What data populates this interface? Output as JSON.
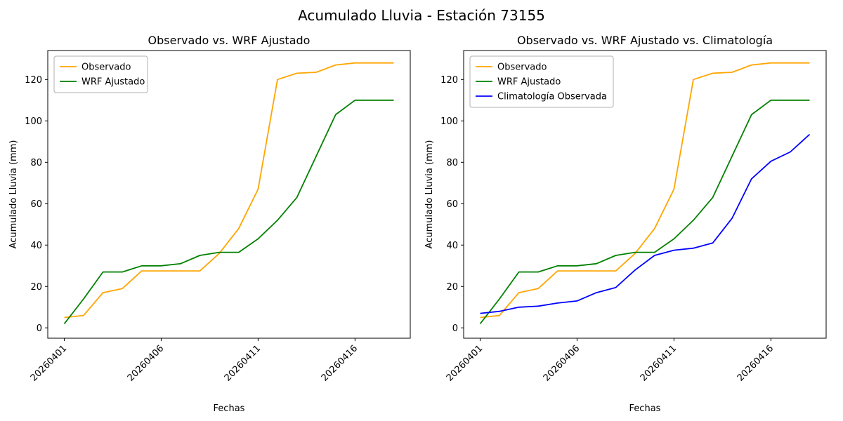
{
  "figure": {
    "title": "Acumulado Lluvia - Estación 73155",
    "background": "#ffffff"
  },
  "chart_data": [
    {
      "type": "line",
      "title": "Observado vs. WRF Ajustado",
      "xlabel": "Fechas",
      "ylabel": "Acumulado Lluvia (mm)",
      "x": [
        "20260401",
        "20260402",
        "20260403",
        "20260404",
        "20260405",
        "20260406",
        "20260407",
        "20260408",
        "20260409",
        "20260410",
        "20260411",
        "20260412",
        "20260413",
        "20260414",
        "20260415",
        "20260416",
        "20260417",
        "20260418"
      ],
      "x_tick_indices": [
        0,
        5,
        10,
        15
      ],
      "x_tick_labels": [
        "20260401",
        "20260406",
        "20260411",
        "20260416"
      ],
      "yticks": [
        0,
        20,
        40,
        60,
        80,
        100,
        120
      ],
      "ylim": [
        -5,
        134
      ],
      "xlim": [
        -0.85,
        17.85
      ],
      "grid": false,
      "legend_position": "upper left",
      "series": [
        {
          "name": "Observado",
          "color": "#ffa500",
          "values": [
            5,
            6,
            17,
            19,
            27.5,
            27.5,
            27.5,
            27.5,
            36,
            48,
            67,
            120,
            123,
            123.5,
            127,
            128,
            128,
            128
          ]
        },
        {
          "name": "WRF Ajustado",
          "color": "#008000",
          "values": [
            2,
            14,
            27,
            27,
            30,
            30,
            31,
            35,
            36.5,
            36.5,
            43,
            52,
            63,
            83,
            103,
            110,
            110,
            110
          ]
        }
      ]
    },
    {
      "type": "line",
      "title": "Observado vs. WRF Ajustado vs. Climatología",
      "xlabel": "Fechas",
      "ylabel": "Acumulado Lluvia (mm)",
      "x": [
        "20260401",
        "20260402",
        "20260403",
        "20260404",
        "20260405",
        "20260406",
        "20260407",
        "20260408",
        "20260409",
        "20260410",
        "20260411",
        "20260412",
        "20260413",
        "20260414",
        "20260415",
        "20260416",
        "20260417",
        "20260418"
      ],
      "x_tick_indices": [
        0,
        5,
        10,
        15
      ],
      "x_tick_labels": [
        "20260401",
        "20260406",
        "20260411",
        "20260416"
      ],
      "yticks": [
        0,
        20,
        40,
        60,
        80,
        100,
        120
      ],
      "ylim": [
        -5,
        134
      ],
      "xlim": [
        -0.85,
        17.85
      ],
      "grid": false,
      "legend_position": "upper left",
      "series": [
        {
          "name": "Observado",
          "color": "#ffa500",
          "values": [
            5,
            6,
            17,
            19,
            27.5,
            27.5,
            27.5,
            27.5,
            36,
            48,
            67,
            120,
            123,
            123.5,
            127,
            128,
            128,
            128
          ]
        },
        {
          "name": "WRF Ajustado",
          "color": "#008000",
          "values": [
            2,
            14,
            27,
            27,
            30,
            30,
            31,
            35,
            36.5,
            36.5,
            43,
            52,
            63,
            83,
            103,
            110,
            110,
            110
          ]
        },
        {
          "name": "Climatología Observada",
          "color": "#0000ff",
          "values": [
            7,
            8,
            10,
            10.5,
            12,
            13,
            17,
            19.5,
            28,
            35,
            37.5,
            38.5,
            41,
            53,
            72,
            80.5,
            85,
            93.5
          ]
        }
      ]
    }
  ]
}
